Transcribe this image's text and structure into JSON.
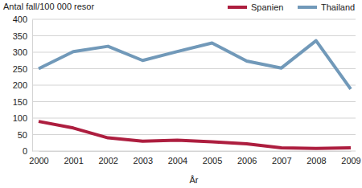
{
  "chart_data": {
    "type": "line",
    "y_label": "Antal fall/100 000 resor",
    "x_label": "År",
    "categories": [
      "2000",
      "2001",
      "2002",
      "2003",
      "2004",
      "2005",
      "2006",
      "2007",
      "2008",
      "2009"
    ],
    "series": [
      {
        "name": "Spanien",
        "color": "#ad1e3f",
        "values": [
          90,
          70,
          40,
          30,
          33,
          28,
          22,
          10,
          8,
          10
        ]
      },
      {
        "name": "Thailand",
        "color": "#7199b9",
        "values": [
          250,
          302,
          318,
          275,
          302,
          328,
          273,
          252,
          335,
          188
        ]
      }
    ],
    "ylim": [
      0,
      400
    ],
    "yticks": [
      0,
      50,
      100,
      150,
      200,
      250,
      300,
      350,
      400
    ],
    "grid": true,
    "legend": "top-right"
  }
}
